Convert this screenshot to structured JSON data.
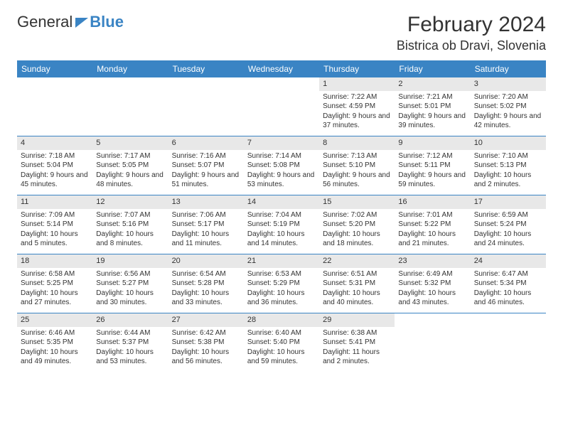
{
  "brand": {
    "part1": "General",
    "part2": "Blue"
  },
  "title": "February 2024",
  "location": "Bistrica ob Dravi, Slovenia",
  "colors": {
    "header_bg": "#3a84c4",
    "header_text": "#ffffff",
    "daynum_bg": "#e8e8e8",
    "border": "#3a84c4",
    "text": "#333333",
    "page_bg": "#ffffff"
  },
  "day_names": [
    "Sunday",
    "Monday",
    "Tuesday",
    "Wednesday",
    "Thursday",
    "Friday",
    "Saturday"
  ],
  "weeks": [
    [
      null,
      null,
      null,
      null,
      {
        "n": "1",
        "sr": "Sunrise: 7:22 AM",
        "ss": "Sunset: 4:59 PM",
        "dl": "Daylight: 9 hours and 37 minutes."
      },
      {
        "n": "2",
        "sr": "Sunrise: 7:21 AM",
        "ss": "Sunset: 5:01 PM",
        "dl": "Daylight: 9 hours and 39 minutes."
      },
      {
        "n": "3",
        "sr": "Sunrise: 7:20 AM",
        "ss": "Sunset: 5:02 PM",
        "dl": "Daylight: 9 hours and 42 minutes."
      }
    ],
    [
      {
        "n": "4",
        "sr": "Sunrise: 7:18 AM",
        "ss": "Sunset: 5:04 PM",
        "dl": "Daylight: 9 hours and 45 minutes."
      },
      {
        "n": "5",
        "sr": "Sunrise: 7:17 AM",
        "ss": "Sunset: 5:05 PM",
        "dl": "Daylight: 9 hours and 48 minutes."
      },
      {
        "n": "6",
        "sr": "Sunrise: 7:16 AM",
        "ss": "Sunset: 5:07 PM",
        "dl": "Daylight: 9 hours and 51 minutes."
      },
      {
        "n": "7",
        "sr": "Sunrise: 7:14 AM",
        "ss": "Sunset: 5:08 PM",
        "dl": "Daylight: 9 hours and 53 minutes."
      },
      {
        "n": "8",
        "sr": "Sunrise: 7:13 AM",
        "ss": "Sunset: 5:10 PM",
        "dl": "Daylight: 9 hours and 56 minutes."
      },
      {
        "n": "9",
        "sr": "Sunrise: 7:12 AM",
        "ss": "Sunset: 5:11 PM",
        "dl": "Daylight: 9 hours and 59 minutes."
      },
      {
        "n": "10",
        "sr": "Sunrise: 7:10 AM",
        "ss": "Sunset: 5:13 PM",
        "dl": "Daylight: 10 hours and 2 minutes."
      }
    ],
    [
      {
        "n": "11",
        "sr": "Sunrise: 7:09 AM",
        "ss": "Sunset: 5:14 PM",
        "dl": "Daylight: 10 hours and 5 minutes."
      },
      {
        "n": "12",
        "sr": "Sunrise: 7:07 AM",
        "ss": "Sunset: 5:16 PM",
        "dl": "Daylight: 10 hours and 8 minutes."
      },
      {
        "n": "13",
        "sr": "Sunrise: 7:06 AM",
        "ss": "Sunset: 5:17 PM",
        "dl": "Daylight: 10 hours and 11 minutes."
      },
      {
        "n": "14",
        "sr": "Sunrise: 7:04 AM",
        "ss": "Sunset: 5:19 PM",
        "dl": "Daylight: 10 hours and 14 minutes."
      },
      {
        "n": "15",
        "sr": "Sunrise: 7:02 AM",
        "ss": "Sunset: 5:20 PM",
        "dl": "Daylight: 10 hours and 18 minutes."
      },
      {
        "n": "16",
        "sr": "Sunrise: 7:01 AM",
        "ss": "Sunset: 5:22 PM",
        "dl": "Daylight: 10 hours and 21 minutes."
      },
      {
        "n": "17",
        "sr": "Sunrise: 6:59 AM",
        "ss": "Sunset: 5:24 PM",
        "dl": "Daylight: 10 hours and 24 minutes."
      }
    ],
    [
      {
        "n": "18",
        "sr": "Sunrise: 6:58 AM",
        "ss": "Sunset: 5:25 PM",
        "dl": "Daylight: 10 hours and 27 minutes."
      },
      {
        "n": "19",
        "sr": "Sunrise: 6:56 AM",
        "ss": "Sunset: 5:27 PM",
        "dl": "Daylight: 10 hours and 30 minutes."
      },
      {
        "n": "20",
        "sr": "Sunrise: 6:54 AM",
        "ss": "Sunset: 5:28 PM",
        "dl": "Daylight: 10 hours and 33 minutes."
      },
      {
        "n": "21",
        "sr": "Sunrise: 6:53 AM",
        "ss": "Sunset: 5:29 PM",
        "dl": "Daylight: 10 hours and 36 minutes."
      },
      {
        "n": "22",
        "sr": "Sunrise: 6:51 AM",
        "ss": "Sunset: 5:31 PM",
        "dl": "Daylight: 10 hours and 40 minutes."
      },
      {
        "n": "23",
        "sr": "Sunrise: 6:49 AM",
        "ss": "Sunset: 5:32 PM",
        "dl": "Daylight: 10 hours and 43 minutes."
      },
      {
        "n": "24",
        "sr": "Sunrise: 6:47 AM",
        "ss": "Sunset: 5:34 PM",
        "dl": "Daylight: 10 hours and 46 minutes."
      }
    ],
    [
      {
        "n": "25",
        "sr": "Sunrise: 6:46 AM",
        "ss": "Sunset: 5:35 PM",
        "dl": "Daylight: 10 hours and 49 minutes."
      },
      {
        "n": "26",
        "sr": "Sunrise: 6:44 AM",
        "ss": "Sunset: 5:37 PM",
        "dl": "Daylight: 10 hours and 53 minutes."
      },
      {
        "n": "27",
        "sr": "Sunrise: 6:42 AM",
        "ss": "Sunset: 5:38 PM",
        "dl": "Daylight: 10 hours and 56 minutes."
      },
      {
        "n": "28",
        "sr": "Sunrise: 6:40 AM",
        "ss": "Sunset: 5:40 PM",
        "dl": "Daylight: 10 hours and 59 minutes."
      },
      {
        "n": "29",
        "sr": "Sunrise: 6:38 AM",
        "ss": "Sunset: 5:41 PM",
        "dl": "Daylight: 11 hours and 2 minutes."
      },
      null,
      null
    ]
  ]
}
